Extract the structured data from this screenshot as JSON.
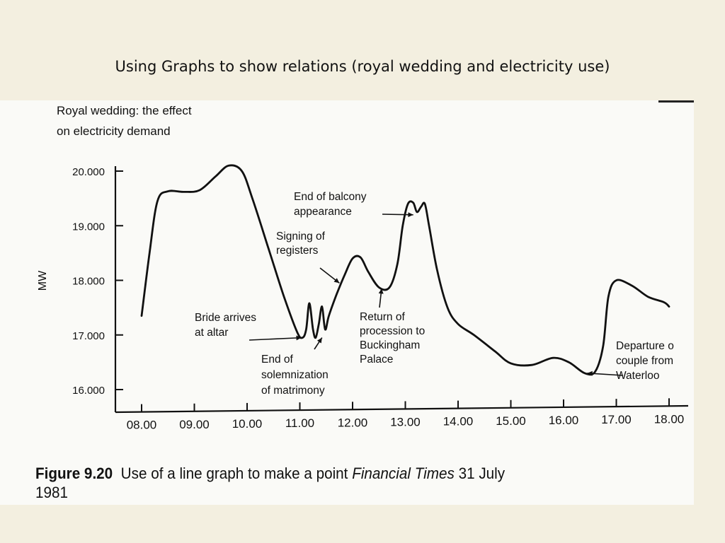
{
  "slide": {
    "title": "Using Graphs to show relations (royal wedding and electricity use)"
  },
  "caption": {
    "figure_number": "Figure 9.20",
    "text": "Use of a line graph to make a point",
    "source": "Financial Times",
    "date_part1": "31 July",
    "date_part2": "1981"
  },
  "chart_data": {
    "type": "line",
    "title_lines": [
      "Royal wedding: the effect",
      "on electricity demand"
    ],
    "ylabel": "MW",
    "xlabel": "",
    "xlim": [
      8.0,
      18.0
    ],
    "ylim": [
      16000,
      20000
    ],
    "x_ticks": [
      8,
      9,
      10,
      11,
      12,
      13,
      14,
      15,
      16,
      17,
      18
    ],
    "x_tick_labels": [
      "08.00",
      "09.00",
      "10.00",
      "11.00",
      "12.00",
      "13.00",
      "14.00",
      "15.00",
      "16.00",
      "17.00",
      "18.00"
    ],
    "y_ticks": [
      16000,
      17000,
      18000,
      19000,
      20000
    ],
    "y_tick_labels": [
      "16.000",
      "17.000",
      "18.000",
      "19.000",
      "20.000"
    ],
    "grid": false,
    "series": [
      {
        "points": [
          [
            8.0,
            17350
          ],
          [
            8.15,
            18500
          ],
          [
            8.3,
            19450
          ],
          [
            8.5,
            19630
          ],
          [
            8.8,
            19620
          ],
          [
            9.1,
            19650
          ],
          [
            9.4,
            19900
          ],
          [
            9.65,
            20100
          ],
          [
            9.9,
            20000
          ],
          [
            10.1,
            19500
          ],
          [
            10.4,
            18600
          ],
          [
            10.7,
            17700
          ],
          [
            10.95,
            17050
          ],
          [
            11.05,
            16950
          ],
          [
            11.12,
            17100
          ],
          [
            11.18,
            17580
          ],
          [
            11.25,
            17100
          ],
          [
            11.3,
            16950
          ],
          [
            11.36,
            17200
          ],
          [
            11.42,
            17520
          ],
          [
            11.48,
            17100
          ],
          [
            11.55,
            17350
          ],
          [
            11.7,
            17750
          ],
          [
            11.85,
            18100
          ],
          [
            12.0,
            18400
          ],
          [
            12.15,
            18420
          ],
          [
            12.3,
            18150
          ],
          [
            12.5,
            17870
          ],
          [
            12.7,
            17870
          ],
          [
            12.85,
            18300
          ],
          [
            12.95,
            19000
          ],
          [
            13.05,
            19400
          ],
          [
            13.15,
            19420
          ],
          [
            13.22,
            19250
          ],
          [
            13.3,
            19350
          ],
          [
            13.37,
            19400
          ],
          [
            13.45,
            19000
          ],
          [
            13.6,
            18200
          ],
          [
            13.8,
            17500
          ],
          [
            14.0,
            17200
          ],
          [
            14.3,
            17000
          ],
          [
            14.7,
            16700
          ],
          [
            15.0,
            16480
          ],
          [
            15.4,
            16450
          ],
          [
            15.8,
            16580
          ],
          [
            16.1,
            16500
          ],
          [
            16.4,
            16300
          ],
          [
            16.6,
            16330
          ],
          [
            16.75,
            16800
          ],
          [
            16.85,
            17700
          ],
          [
            17.0,
            18000
          ],
          [
            17.3,
            17900
          ],
          [
            17.6,
            17700
          ],
          [
            17.9,
            17600
          ],
          [
            18.0,
            17520
          ]
        ]
      }
    ],
    "annotations": [
      {
        "lines": [
          "Bride arrives",
          "at altar"
        ],
        "x": 11.03,
        "y": 16950
      },
      {
        "lines": [
          "End of",
          "solemnization",
          "of matrimony"
        ],
        "x": 11.42,
        "y": 16950
      },
      {
        "lines": [
          "Signing of",
          "registers"
        ],
        "x": 11.75,
        "y": 17950
      },
      {
        "lines": [
          "End of balcony",
          "appearance"
        ],
        "x": 13.15,
        "y": 19200
      },
      {
        "lines": [
          "Return of",
          "procession to",
          "Buckingham",
          "Palace"
        ],
        "x": 12.55,
        "y": 17850
      },
      {
        "lines": [
          "Departure o",
          "couple from",
          "Waterloo"
        ],
        "x": 16.45,
        "y": 16300
      }
    ]
  }
}
